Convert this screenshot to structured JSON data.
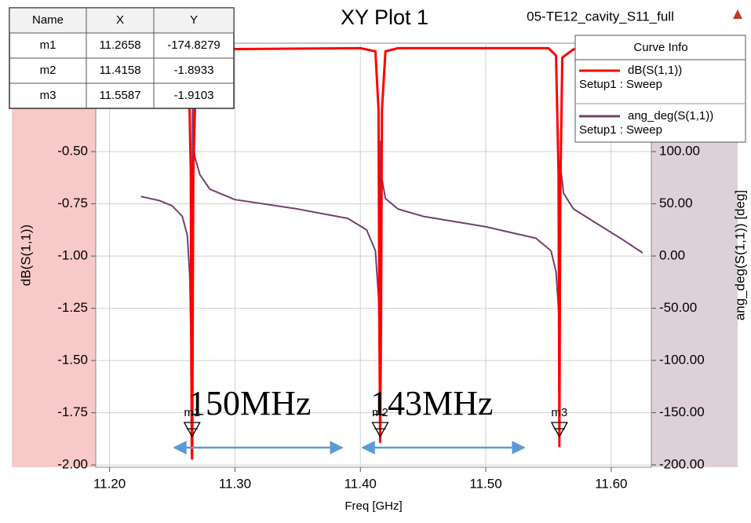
{
  "chart_data": {
    "type": "line",
    "title": "XY Plot 1",
    "subtitle": "05-TE12_cavity_S11_full",
    "x_label": "Freq [GHz]",
    "y_label": "dB(S(1,1))",
    "y2_label": "ang_deg(S(1,1)) [deg]",
    "xlim": [
      11.189,
      11.632
    ],
    "ylim": [
      -2.011,
      0.019
    ],
    "y2lim": [
      -202.3,
      203.8
    ],
    "xticks": [
      {
        "value": 11.2,
        "label": "11.20"
      },
      {
        "value": 11.3,
        "label": "11.30"
      },
      {
        "value": 11.4,
        "label": "11.40"
      },
      {
        "value": 11.5,
        "label": "11.50"
      },
      {
        "value": 11.6,
        "label": "11.60"
      }
    ],
    "yticks": [
      {
        "value": -2,
        "label": "-2.00"
      },
      {
        "value": -1.75,
        "label": "-1.75"
      },
      {
        "value": -1.5,
        "label": "-1.50"
      },
      {
        "value": -1.25,
        "label": "-1.25"
      },
      {
        "value": -1,
        "label": "-1.00"
      },
      {
        "value": -0.75,
        "label": "-0.75"
      },
      {
        "value": -0.5,
        "label": "-0.50"
      }
    ],
    "y2ticks": [
      {
        "value": -200,
        "label": "-200.00"
      },
      {
        "value": -150,
        "label": "-150.00"
      },
      {
        "value": -100,
        "label": "-100.00"
      },
      {
        "value": -50,
        "label": "-50.00"
      },
      {
        "value": 0,
        "label": "0.00"
      },
      {
        "value": 50,
        "label": "50.00"
      },
      {
        "value": 100,
        "label": "100.00"
      }
    ],
    "grid": true,
    "legend_title": "Curve Info",
    "series": [
      {
        "name": "dB(S(1,1))",
        "setup": "Setup1 : Sweep",
        "color": "#ff0000",
        "x": [
          11.225,
          11.26,
          11.263,
          11.2648,
          11.2652,
          11.2656,
          11.2658,
          11.266,
          11.2664,
          11.2668,
          11.269,
          11.28,
          11.4,
          11.412,
          11.4145,
          11.4152,
          11.4158,
          11.4165,
          11.4172,
          11.42,
          11.43,
          11.55,
          11.556,
          11.558,
          11.5587,
          11.5594,
          11.561,
          11.57,
          11.625
        ],
        "values": [
          -0.005,
          -0.01,
          -0.05,
          -0.6,
          -1.5,
          -1.95,
          -1.97,
          -1.9,
          -1.2,
          -0.6,
          -0.08,
          -0.01,
          -0.005,
          -0.02,
          -0.3,
          -1.4,
          -1.89,
          -1.3,
          -0.3,
          -0.02,
          -0.005,
          -0.005,
          -0.04,
          -0.6,
          -1.91,
          -0.7,
          -0.05,
          -0.01,
          -0.005
        ]
      },
      {
        "name": "ang_deg(S(1,1))",
        "setup": "Setup1 : Sweep",
        "color": "#74406b",
        "axis": "y2",
        "x": [
          11.225,
          11.24,
          11.25,
          11.258,
          11.262,
          11.264,
          11.2655,
          11.2658,
          11.2662,
          11.2668,
          11.268,
          11.272,
          11.28,
          11.3,
          11.35,
          11.39,
          11.405,
          11.412,
          11.4145,
          11.4158,
          11.4162,
          11.417,
          11.42,
          11.43,
          11.45,
          11.5,
          11.54,
          11.552,
          11.556,
          11.5585,
          11.5592,
          11.562,
          11.57,
          11.59,
          11.61,
          11.625
        ],
        "values": [
          57,
          53,
          48,
          38,
          20,
          -20,
          -120,
          -174.8,
          160,
          110,
          95,
          78,
          64,
          54,
          45,
          36,
          25,
          5,
          -40,
          -110,
          110,
          75,
          55,
          45,
          38,
          28,
          17,
          5,
          -15,
          -60,
          90,
          60,
          45,
          30,
          15,
          3
        ]
      }
    ],
    "markers": {
      "columns": [
        "Name",
        "X",
        "Y"
      ],
      "rows": [
        {
          "name": "m1",
          "x": 11.2658,
          "y": -174.8279
        },
        {
          "name": "m2",
          "x": 11.4158,
          "y": -1.8933
        },
        {
          "name": "m3",
          "x": 11.5587,
          "y": -1.9103
        }
      ]
    },
    "annotations": [
      "150MHz",
      "143MHz"
    ]
  }
}
